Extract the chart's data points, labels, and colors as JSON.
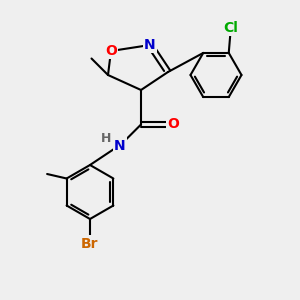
{
  "background_color": "#efefef",
  "bond_color": "#000000",
  "bond_width": 1.5,
  "atom_colors": {
    "O": "#ff0000",
    "N": "#0000cc",
    "Cl": "#00aa00",
    "Br": "#cc6600",
    "H": "#666666",
    "C": "#000000"
  },
  "font_size": 10,
  "fig_width": 3.0,
  "fig_height": 3.0,
  "dpi": 100
}
